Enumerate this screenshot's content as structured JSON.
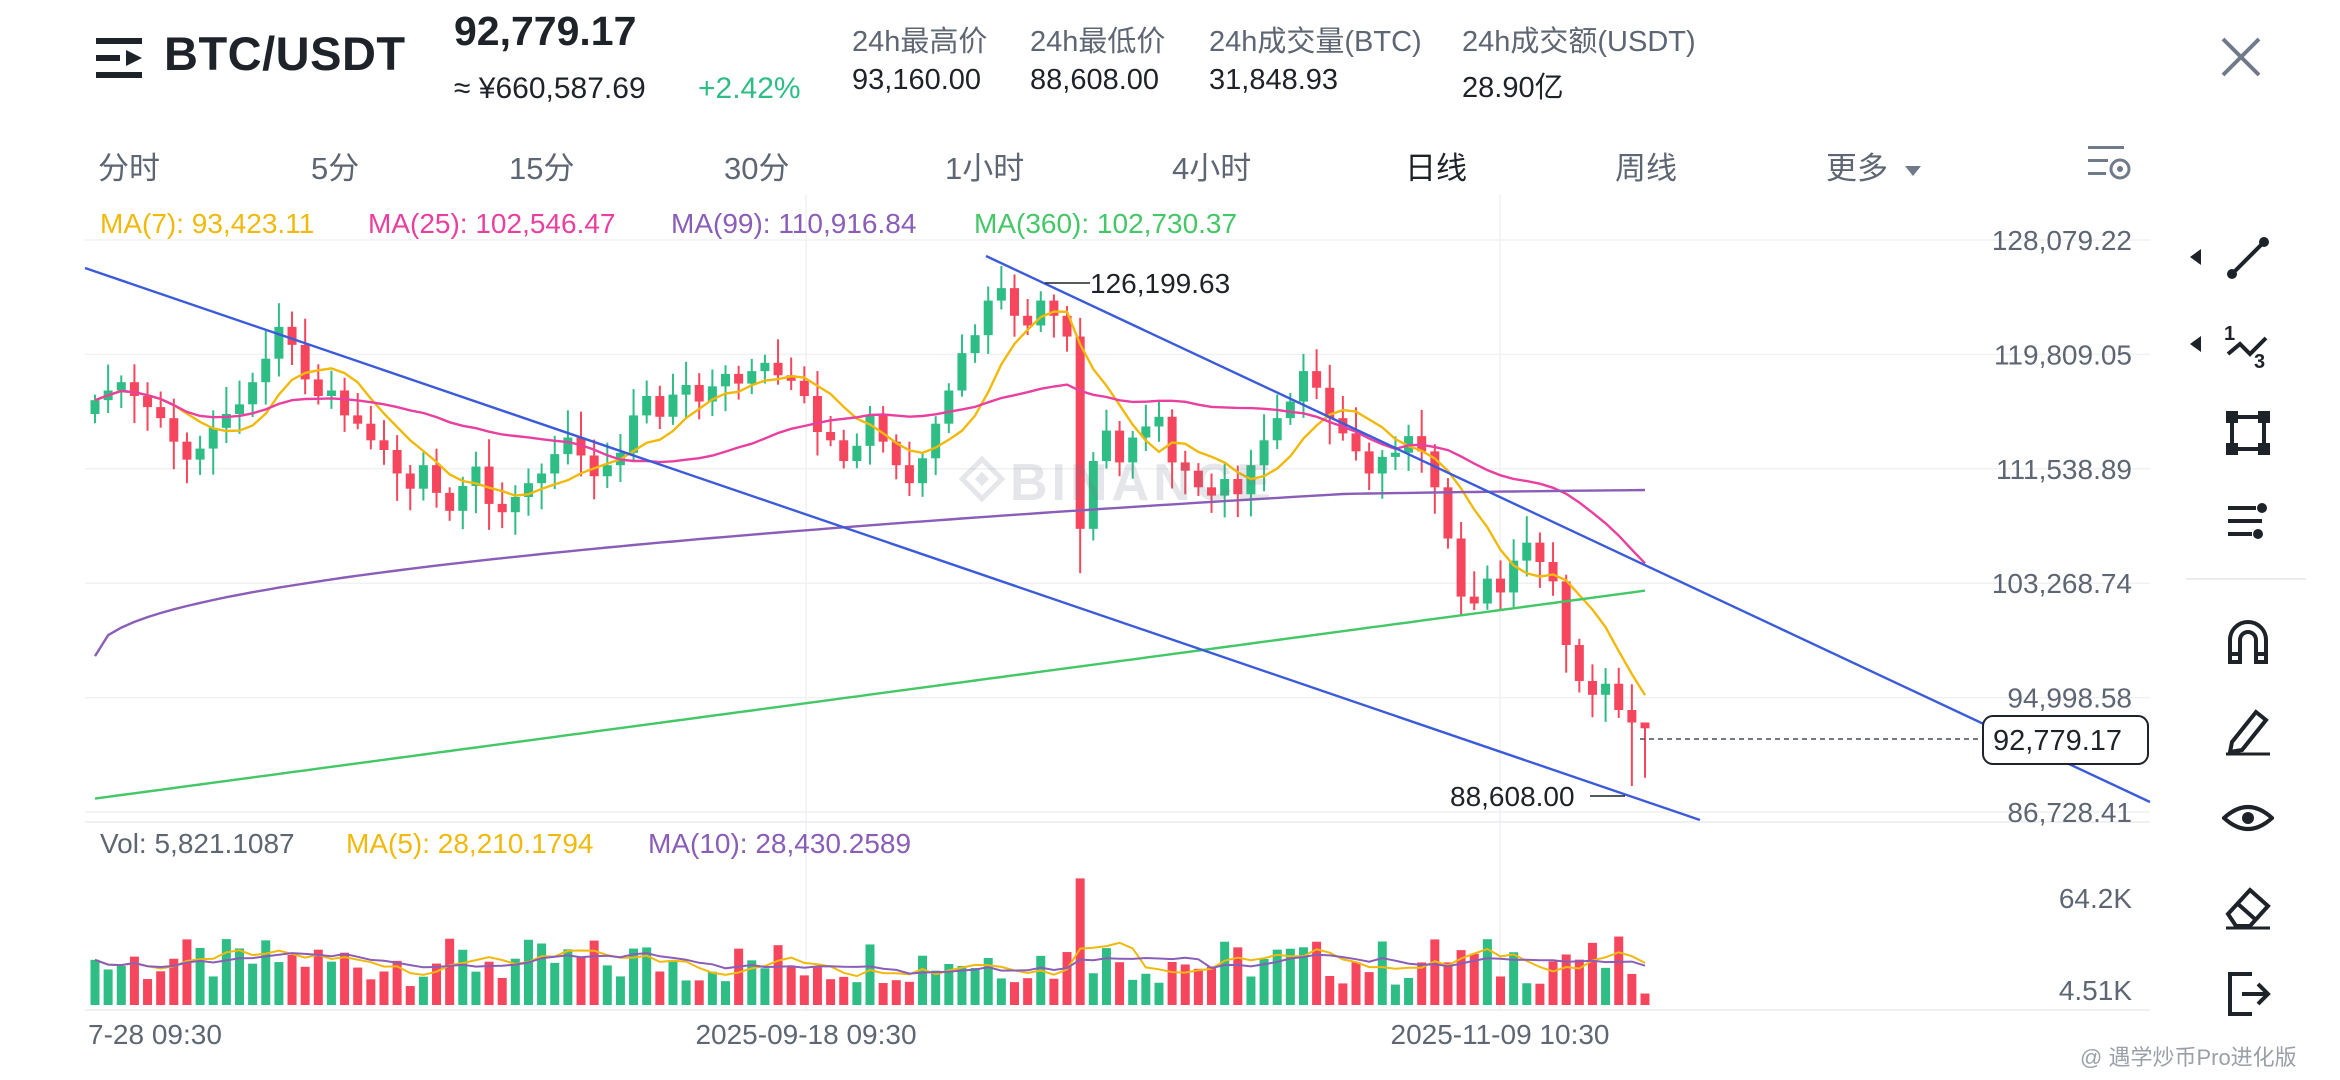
{
  "header": {
    "pair": "BTC/USDT",
    "price": "92,779.17",
    "cny_price": "≈ ¥660,587.69",
    "change": "+2.42%",
    "stats": [
      {
        "label": "24h最高价",
        "value": "93,160.00"
      },
      {
        "label": "24h最低价",
        "value": "88,608.00"
      },
      {
        "label": "24h成交量(BTC)",
        "value": "31,848.93"
      },
      {
        "label": "24h成交额(USDT)",
        "value": "28.90亿"
      }
    ]
  },
  "tabs": [
    {
      "label": "分时"
    },
    {
      "label": "5分"
    },
    {
      "label": "15分"
    },
    {
      "label": "30分"
    },
    {
      "label": "1小时"
    },
    {
      "label": "4小时"
    },
    {
      "label": "日线",
      "active": true
    },
    {
      "label": "周线"
    },
    {
      "label": "更多"
    }
  ],
  "ma_legend": [
    {
      "label": "MA(7): 93,423.11",
      "color": "#f0b90b"
    },
    {
      "label": "MA(25): 102,546.47",
      "color": "#e9409f"
    },
    {
      "label": "MA(99): 110,916.84",
      "color": "#8a5db8"
    },
    {
      "label": "MA(360): 102,730.37",
      "color": "#44c767"
    }
  ],
  "vol_legend": [
    {
      "label": "Vol: 5,821.1087",
      "color": "#5e6673"
    },
    {
      "label": "MA(5): 28,210.1794",
      "color": "#f0b90b"
    },
    {
      "label": "MA(10): 28,430.2589",
      "color": "#8a5db8"
    }
  ],
  "price_axis": [
    "128,079.22",
    "119,809.05",
    "111,538.89",
    "103,268.74",
    "94,998.58",
    "86,728.41"
  ],
  "vol_axis": [
    "64.2K",
    "4.51K"
  ],
  "time_axis": [
    "7-28 09:30",
    "2025-09-18 09:30",
    "2025-11-09 10:30"
  ],
  "annotations": {
    "high": "126,199.63",
    "low": "88,608.00",
    "current": "92,779.17"
  },
  "colors": {
    "up": "#2ebd85",
    "down": "#f6465d",
    "trend": "#3b5bdb"
  },
  "watermark": "@ 遇学炒币Pro进化版",
  "chart_data": {
    "type": "candlestick",
    "title": "BTC/USDT",
    "interval": "日线",
    "price_range": [
      86728.41,
      128079.22
    ],
    "annotations": {
      "high": 126199.63,
      "low": 88608.0,
      "current": 92779.17
    },
    "ma_values": {
      "MA(7)": 93423.11,
      "MA(25)": 102546.47,
      "MA(99)": 110916.84,
      "MA(360)": 102730.37
    },
    "closes": [
      116500,
      117200,
      117800,
      116800,
      116000,
      115200,
      113500,
      112200,
      113000,
      114500,
      115500,
      116200,
      117800,
      119500,
      121800,
      120500,
      118000,
      116800,
      117200,
      115400,
      114800,
      113600,
      112900,
      111200,
      110100,
      111800,
      109800,
      108500,
      110300,
      111700,
      109000,
      108400,
      109500,
      110500,
      111200,
      112600,
      113800,
      112500,
      111000,
      111800,
      112700,
      115400,
      116800,
      115300,
      116900,
      117600,
      116400,
      117500,
      118400,
      117700,
      118600,
      119200,
      118300,
      117900,
      116800,
      114200,
      113600,
      112100,
      113200,
      115400,
      113500,
      111800,
      110500,
      112300,
      114800,
      117200,
      119900,
      121200,
      123700,
      124600,
      122600,
      121900,
      123700,
      122600,
      121100,
      107200,
      112100,
      114300,
      112000,
      113800,
      114600,
      115300,
      112000,
      111400,
      110200,
      109600,
      110800,
      109700,
      111800,
      113600,
      115200,
      116400,
      118600,
      117400,
      115200,
      114100,
      112800,
      111200,
      112400,
      112700,
      113900,
      112800,
      110200,
      106500,
      102300,
      101800,
      103600,
      102600,
      104900,
      106200,
      104800,
      103400,
      98800,
      96200,
      95200,
      96000,
      94100,
      93200,
      92779.17
    ],
    "volume_range": [
      4510,
      64200
    ],
    "volume_current": 5821.1087,
    "volume_ma": {
      "MA(5)": 28210.1794,
      "MA(10)": 28430.2589
    }
  }
}
